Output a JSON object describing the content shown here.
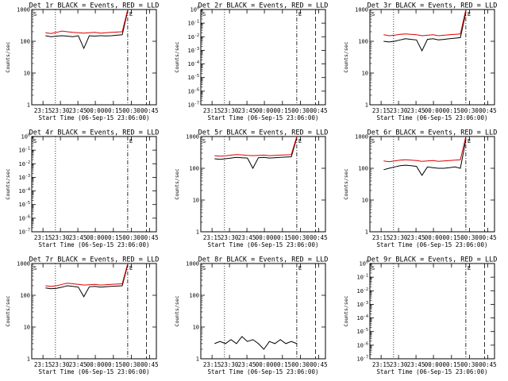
{
  "chart_data": [
    {
      "type": "line",
      "title": "Det 1r BLACK = Events, RED = LLD",
      "xlabel": "Start Time (06-Sep-15 23:06:00)",
      "ylabel": "Counts/sec",
      "x_ticks": [
        "23:15",
        "23:30",
        "23:45",
        "00:00",
        "00:15",
        "00:30",
        "00:45"
      ],
      "y_scale": "log",
      "y_ticks": [
        "1",
        "10",
        "100",
        "1000"
      ],
      "ylim": [
        1,
        1000
      ],
      "markers": [
        "S",
        "E"
      ],
      "series": [
        {
          "color": "#000000",
          "values": [
            150,
            140,
            145,
            150,
            145,
            140,
            150,
            60,
            150,
            145,
            150,
            148,
            150,
            155,
            160,
            900
          ]
        },
        {
          "color": "#e00000",
          "values": [
            185,
            175,
            190,
            210,
            200,
            190,
            185,
            180,
            185,
            190,
            180,
            185,
            190,
            195,
            200,
            1000
          ]
        }
      ]
    },
    {
      "type": "line",
      "title": "Det 2r BLACK = Events, RED = LLD",
      "xlabel": "Start Time (06-Sep-15 23:06:00)",
      "ylabel": "Counts/sec",
      "x_ticks": [
        "23:15",
        "23:30",
        "23:45",
        "00:00",
        "00:15",
        "00:30",
        "00:45"
      ],
      "y_scale": "log",
      "y_ticks": [
        "10^-7",
        "10^-6",
        "10^-5",
        "10^-4",
        "10^-3",
        "10^-2",
        "10^-1",
        "10^0"
      ],
      "ylim": [
        1e-07,
        1
      ],
      "markers": [
        "S",
        "E"
      ],
      "series": []
    },
    {
      "type": "line",
      "title": "Det 3r BLACK = Events, RED = LLD",
      "xlabel": "Start Time (06-Sep-15 23:06:00)",
      "ylabel": "Counts/sec",
      "x_ticks": [
        "23:15",
        "23:30",
        "23:45",
        "00:00",
        "00:15",
        "00:30",
        "00:45"
      ],
      "y_scale": "log",
      "y_ticks": [
        "1",
        "10",
        "100",
        "1000"
      ],
      "ylim": [
        1,
        1000
      ],
      "markers": [
        "S",
        "E"
      ],
      "series": [
        {
          "color": "#000000",
          "values": [
            100,
            95,
            100,
            110,
            120,
            115,
            110,
            50,
            115,
            120,
            110,
            115,
            120,
            125,
            130,
            800
          ]
        },
        {
          "color": "#e00000",
          "values": [
            160,
            150,
            155,
            165,
            170,
            165,
            160,
            150,
            155,
            160,
            150,
            155,
            160,
            165,
            170,
            1000
          ]
        }
      ]
    },
    {
      "type": "line",
      "title": "Det 4r BLACK = Events, RED = LLD",
      "xlabel": "Start Time (06-Sep-15 23:06:00)",
      "ylabel": "Counts/sec",
      "x_ticks": [
        "23:15",
        "23:30",
        "23:45",
        "00:00",
        "00:15",
        "00:30",
        "00:45"
      ],
      "y_scale": "log",
      "y_ticks": [
        "10^-7",
        "10^-6",
        "10^-5",
        "10^-4",
        "10^-3",
        "10^-2",
        "10^-1",
        "10^0"
      ],
      "ylim": [
        1e-07,
        1
      ],
      "markers": [
        "S",
        "E"
      ],
      "series": []
    },
    {
      "type": "line",
      "title": "Det 5r BLACK = Events, RED = LLD",
      "xlabel": "Start Time (06-Sep-15 23:06:00)",
      "ylabel": "Counts/sec",
      "x_ticks": [
        "23:15",
        "23:30",
        "23:45",
        "00:00",
        "00:15",
        "00:30",
        "00:45"
      ],
      "y_scale": "log",
      "y_ticks": [
        "1",
        "10",
        "100",
        "1000"
      ],
      "ylim": [
        1,
        1000
      ],
      "markers": [
        "S",
        "E"
      ],
      "series": [
        {
          "color": "#000000",
          "values": [
            200,
            190,
            200,
            210,
            220,
            215,
            210,
            100,
            215,
            220,
            210,
            215,
            220,
            225,
            230,
            900
          ]
        },
        {
          "color": "#e00000",
          "values": [
            250,
            240,
            245,
            260,
            270,
            265,
            255,
            250,
            255,
            260,
            250,
            255,
            260,
            265,
            270,
            1000
          ]
        }
      ]
    },
    {
      "type": "line",
      "title": "Det 6r BLACK = Events, RED = LLD",
      "xlabel": "Start Time (06-Sep-15 23:06:00)",
      "ylabel": "Counts/sec",
      "x_ticks": [
        "23:15",
        "23:30",
        "23:45",
        "00:00",
        "00:15",
        "00:30",
        "00:45"
      ],
      "y_scale": "log",
      "y_ticks": [
        "1",
        "10",
        "100",
        "1000"
      ],
      "ylim": [
        1,
        1000
      ],
      "markers": [
        "S",
        "E"
      ],
      "series": [
        {
          "color": "#000000",
          "values": [
            90,
            100,
            110,
            120,
            125,
            120,
            115,
            60,
            110,
            105,
            100,
            100,
            105,
            110,
            100,
            800
          ]
        },
        {
          "color": "#e00000",
          "values": [
            170,
            160,
            170,
            180,
            185,
            180,
            175,
            165,
            170,
            175,
            165,
            170,
            175,
            180,
            185,
            1000
          ]
        }
      ]
    },
    {
      "type": "line",
      "title": "Det 7r BLACK = Events, RED = LLD",
      "xlabel": "Start Time (06-Sep-15 23:06:00)",
      "ylabel": "Counts/sec",
      "x_ticks": [
        "23:15",
        "23:30",
        "23:45",
        "00:00",
        "00:15",
        "00:30",
        "00:45"
      ],
      "y_scale": "log",
      "y_ticks": [
        "1",
        "10",
        "100",
        "1000"
      ],
      "ylim": [
        1,
        1000
      ],
      "markers": [
        "S",
        "E"
      ],
      "series": [
        {
          "color": "#000000",
          "values": [
            170,
            160,
            165,
            180,
            200,
            190,
            180,
            90,
            185,
            190,
            180,
            185,
            190,
            195,
            200,
            900
          ]
        },
        {
          "color": "#e00000",
          "values": [
            200,
            190,
            200,
            220,
            240,
            230,
            220,
            210,
            215,
            220,
            210,
            215,
            220,
            225,
            230,
            1000
          ]
        }
      ]
    },
    {
      "type": "line",
      "title": "Det 8r BLACK = Events, RED = LLD",
      "xlabel": "Start Time (06-Sep-15 23:06:00)",
      "ylabel": "Counts/sec",
      "x_ticks": [
        "23:15",
        "23:30",
        "23:45",
        "00:00",
        "00:15",
        "00:30",
        "00:45"
      ],
      "y_scale": "log",
      "y_ticks": [
        "1",
        "10",
        "100",
        "1000"
      ],
      "ylim": [
        1,
        1000
      ],
      "markers": [
        "S",
        "E"
      ],
      "series": [
        {
          "color": "#000000",
          "values": [
            3,
            3.5,
            3,
            4,
            3,
            5,
            3.5,
            4,
            3,
            2,
            3.5,
            3,
            4,
            3,
            3.5,
            3
          ]
        }
      ]
    },
    {
      "type": "line",
      "title": "Det 9r BLACK = Events, RED = LLD",
      "xlabel": "Start Time (06-Sep-15 23:06:00)",
      "ylabel": "Counts/sec",
      "x_ticks": [
        "23:15",
        "23:30",
        "23:45",
        "00:00",
        "00:15",
        "00:30",
        "00:45"
      ],
      "y_scale": "log",
      "y_ticks": [
        "10^-7",
        "10^-6",
        "10^-5",
        "10^-4",
        "10^-3",
        "10^-2",
        "10^-1",
        "10^0"
      ],
      "ylim": [
        1e-07,
        1
      ],
      "markers": [
        "S",
        "E"
      ],
      "series": []
    }
  ]
}
